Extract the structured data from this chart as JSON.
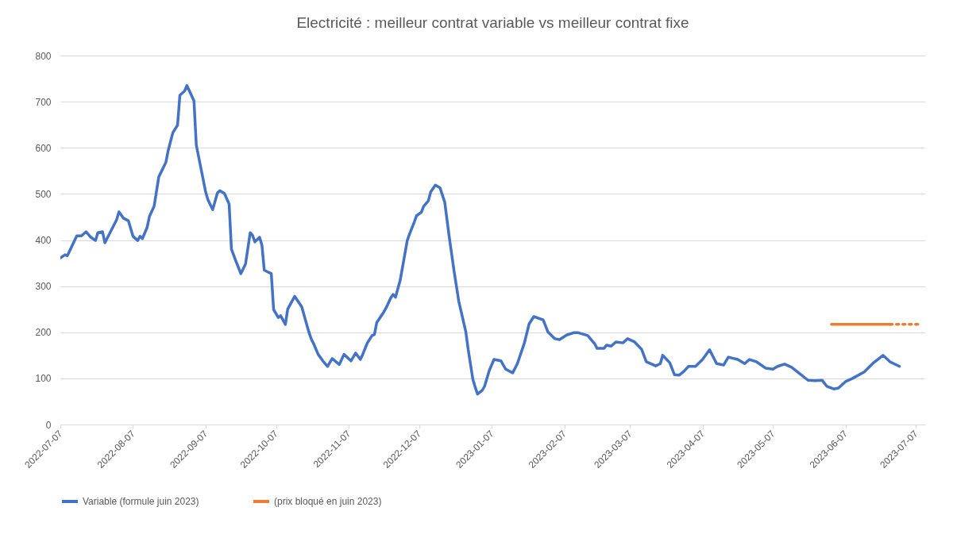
{
  "chart_data": {
    "type": "line",
    "title": "Electricité : meilleur contrat variable vs meilleur contrat fixe",
    "xlim": [
      "2022-07-07",
      "2023-07-11"
    ],
    "xticks": [
      "2022-07-07",
      "2022-08-07",
      "2022-09-07",
      "2022-10-07",
      "2022-11-07",
      "2022-12-07",
      "2023-01-07",
      "2023-02-07",
      "2023-03-07",
      "2023-04-07",
      "2023-05-07",
      "2023-06-07",
      "2023-07-07"
    ],
    "ylim": [
      0,
      800
    ],
    "yticks": [
      0,
      100,
      200,
      300,
      400,
      500,
      600,
      700,
      800
    ],
    "grid": "y",
    "legend": "bottom",
    "line_style": "solid",
    "series": [
      {
        "name": "Variable (formule juin 2023)",
        "color": "#4472c4",
        "x": [
          "2022-07-07",
          "2022-07-09",
          "2022-07-10",
          "2022-07-14",
          "2022-07-16",
          "2022-07-18",
          "2022-07-20",
          "2022-07-22",
          "2022-07-23",
          "2022-07-25",
          "2022-07-26",
          "2022-07-31",
          "2022-08-01",
          "2022-08-03",
          "2022-08-05",
          "2022-08-07",
          "2022-08-09",
          "2022-08-10",
          "2022-08-11",
          "2022-08-13",
          "2022-08-14",
          "2022-08-16",
          "2022-08-18",
          "2022-08-21",
          "2022-08-22",
          "2022-08-24",
          "2022-08-26",
          "2022-08-27",
          "2022-08-29",
          "2022-08-30",
          "2022-09-02",
          "2022-09-03",
          "2022-09-07",
          "2022-09-08",
          "2022-09-10",
          "2022-09-12",
          "2022-09-13",
          "2022-09-15",
          "2022-09-17",
          "2022-09-18",
          "2022-09-20",
          "2022-09-22",
          "2022-09-24",
          "2022-09-26",
          "2022-09-27",
          "2022-09-28",
          "2022-09-30",
          "2022-10-01",
          "2022-10-02",
          "2022-10-03",
          "2022-10-05",
          "2022-10-06",
          "2022-10-08",
          "2022-10-09",
          "2022-10-11",
          "2022-10-12",
          "2022-10-15",
          "2022-10-18",
          "2022-10-21",
          "2022-10-22",
          "2022-10-23",
          "2022-10-25",
          "2022-10-27",
          "2022-10-29",
          "2022-10-31",
          "2022-11-03",
          "2022-11-05",
          "2022-11-08",
          "2022-11-10",
          "2022-11-12",
          "2022-11-13",
          "2022-11-15",
          "2022-11-17",
          "2022-11-18",
          "2022-11-19",
          "2022-11-22",
          "2022-11-23",
          "2022-11-25",
          "2022-11-26",
          "2022-11-27",
          "2022-11-29",
          "2022-12-01",
          "2022-12-02",
          "2022-12-03",
          "2022-12-05",
          "2022-12-06",
          "2022-12-08",
          "2022-12-09",
          "2022-12-11",
          "2022-12-12",
          "2022-12-14",
          "2022-12-16",
          "2022-12-18",
          "2022-12-20",
          "2022-12-22",
          "2022-12-24",
          "2022-12-27",
          "2022-12-28",
          "2022-12-30",
          "2022-12-31",
          "2023-01-01",
          "2023-01-03",
          "2023-01-04",
          "2023-01-06",
          "2023-01-08",
          "2023-01-11",
          "2023-01-13",
          "2023-01-16",
          "2023-01-18",
          "2023-01-21",
          "2023-01-23",
          "2023-01-25",
          "2023-01-29",
          "2023-01-31",
          "2023-02-03",
          "2023-02-05",
          "2023-02-08",
          "2023-02-11",
          "2023-02-13",
          "2023-02-17",
          "2023-02-20",
          "2023-02-21",
          "2023-02-24",
          "2023-02-25",
          "2023-02-27",
          "2023-03-01",
          "2023-03-04",
          "2023-03-06",
          "2023-03-09",
          "2023-03-12",
          "2023-03-14",
          "2023-03-18",
          "2023-03-20",
          "2023-03-21",
          "2023-03-24",
          "2023-03-26",
          "2023-03-28",
          "2023-03-30",
          "2023-04-01",
          "2023-04-04",
          "2023-04-07",
          "2023-04-10",
          "2023-04-13",
          "2023-04-16",
          "2023-04-18",
          "2023-04-22",
          "2023-04-25",
          "2023-04-27",
          "2023-04-30",
          "2023-05-04",
          "2023-05-07",
          "2023-05-09",
          "2023-05-12",
          "2023-05-15",
          "2023-05-18",
          "2023-05-22",
          "2023-05-25",
          "2023-05-28",
          "2023-05-30",
          "2023-06-02",
          "2023-06-04",
          "2023-06-07",
          "2023-06-10",
          "2023-06-15",
          "2023-06-19",
          "2023-06-23",
          "2023-06-26",
          "2023-06-30"
        ],
        "values": [
          361,
          368,
          366,
          409,
          409,
          418,
          406,
          399,
          416,
          418,
          394,
          444,
          461,
          447,
          442,
          408,
          399,
          408,
          403,
          427,
          451,
          473,
          537,
          568,
          594,
          633,
          649,
          714,
          723,
          735,
          702,
          606,
          504,
          487,
          466,
          502,
          507,
          501,
          478,
          380,
          353,
          327,
          348,
          416,
          410,
          396,
          406,
          389,
          335,
          332,
          327,
          249,
          232,
          236,
          217,
          250,
          278,
          255,
          201,
          186,
          176,
          152,
          138,
          126,
          143,
          130,
          152,
          138,
          155,
          141,
          152,
          177,
          193,
          195,
          221,
          244,
          253,
          275,
          282,
          276,
          313,
          370,
          399,
          413,
          439,
          453,
          460,
          473,
          485,
          504,
          519,
          513,
          482,
          404,
          332,
          267,
          201,
          163,
          98,
          81,
          66,
          74,
          83,
          117,
          141,
          138,
          120,
          112,
          132,
          177,
          218,
          234,
          227,
          201,
          186,
          184,
          194,
          199,
          199,
          193,
          175,
          165,
          165,
          172,
          170,
          179,
          177,
          186,
          179,
          163,
          136,
          127,
          132,
          150,
          134,
          108,
          107,
          115,
          126,
          126,
          141,
          162,
          132,
          129,
          146,
          141,
          132,
          141,
          136,
          122,
          120,
          126,
          131,
          124,
          112,
          96,
          95,
          96,
          83,
          77,
          79,
          93,
          100,
          114,
          134,
          150,
          136,
          126
        ]
      },
      {
        "name": "(prix bloqué en juin 2023)",
        "color": "#ed7d31",
        "x": [
          "2023-06-01",
          "2023-06-26"
        ],
        "values": [
          217,
          217
        ]
      },
      {
        "color": "#ed7d31",
        "line_style": "dotted",
        "x": [
          "2023-06-26",
          "2023-07-08"
        ],
        "values": [
          217,
          217
        ]
      }
    ]
  }
}
